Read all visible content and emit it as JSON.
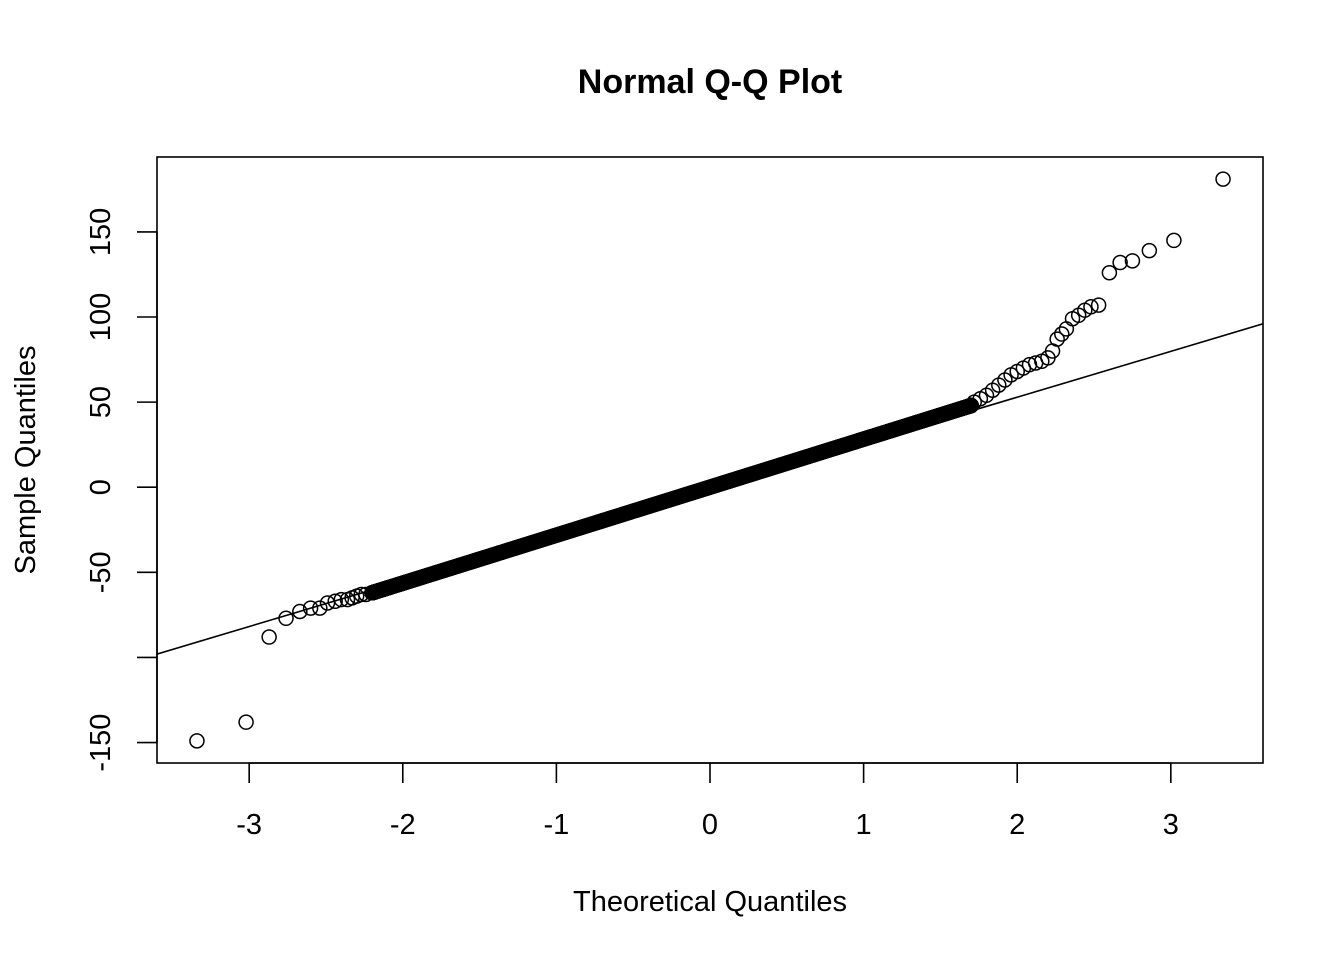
{
  "chart_data": {
    "type": "scatter",
    "title": "Normal Q-Q Plot",
    "xlabel": "Theoretical Quantiles",
    "ylabel": "Sample Quantiles",
    "xlim": [
      -3.6,
      3.6
    ],
    "ylim": [
      -162,
      194
    ],
    "x_ticks": [
      -3,
      -2,
      -1,
      0,
      1,
      2,
      3
    ],
    "x_tick_labels": [
      "-3",
      "-2",
      "-1",
      "0",
      "1",
      "2",
      "3"
    ],
    "y_ticks": [
      -150,
      -100,
      -50,
      0,
      50,
      100,
      150
    ],
    "y_tick_labels": [
      "-150",
      "",
      "-50",
      "0",
      "50",
      "100",
      "150"
    ],
    "grid": false,
    "marker": "open-circle",
    "color": "#000000",
    "reference_line": {
      "x": [
        -3.6,
        3.6
      ],
      "y": [
        -98,
        96
      ]
    },
    "bulk_segments": [
      {
        "x_from": -2.2,
        "x_to": 1.7,
        "y_from": -62,
        "y_to": 48,
        "count": 900
      }
    ],
    "points": [
      [
        -3.34,
        -149
      ],
      [
        -3.02,
        -138
      ],
      [
        -2.87,
        -88
      ],
      [
        -2.76,
        -77
      ],
      [
        -2.67,
        -73
      ],
      [
        -2.6,
        -71
      ],
      [
        -2.54,
        -71
      ],
      [
        -2.49,
        -68
      ],
      [
        -2.44,
        -67
      ],
      [
        -2.4,
        -66
      ],
      [
        -2.36,
        -66
      ],
      [
        -2.33,
        -65
      ],
      [
        -2.3,
        -64
      ],
      [
        -2.27,
        -63
      ],
      [
        -2.24,
        -63
      ],
      [
        1.72,
        50
      ],
      [
        1.76,
        52
      ],
      [
        1.8,
        54
      ],
      [
        1.84,
        57
      ],
      [
        1.88,
        60
      ],
      [
        1.92,
        63
      ],
      [
        1.96,
        66
      ],
      [
        2.0,
        68
      ],
      [
        2.04,
        70
      ],
      [
        2.08,
        72
      ],
      [
        2.12,
        73
      ],
      [
        2.16,
        74
      ],
      [
        2.2,
        76
      ],
      [
        2.23,
        80
      ],
      [
        2.26,
        87
      ],
      [
        2.29,
        90
      ],
      [
        2.32,
        93
      ],
      [
        2.36,
        99
      ],
      [
        2.4,
        101
      ],
      [
        2.44,
        104
      ],
      [
        2.48,
        106
      ],
      [
        2.53,
        107
      ],
      [
        2.6,
        126
      ],
      [
        2.67,
        132
      ],
      [
        2.75,
        133
      ],
      [
        2.86,
        139
      ],
      [
        3.02,
        145
      ],
      [
        3.34,
        181
      ]
    ]
  }
}
